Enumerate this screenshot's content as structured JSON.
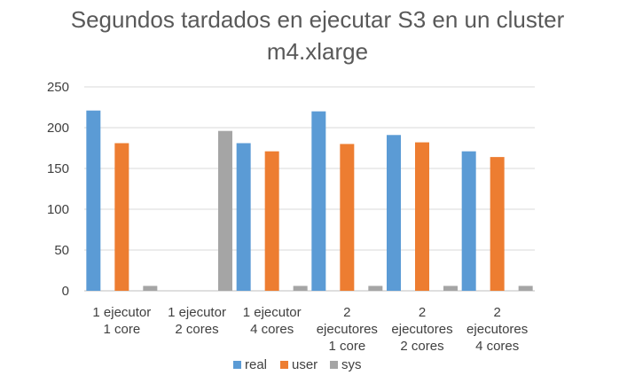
{
  "chart_data": {
    "type": "bar",
    "title_lines": [
      "Segundos tardados en ejecutar S3 en un cluster",
      "m4.xlarge"
    ],
    "categories": [
      [
        "1 ejecutor",
        "1 core"
      ],
      [
        "1 ejecutor",
        "2 cores"
      ],
      [
        "1 ejecutor",
        "4 cores"
      ],
      [
        "2",
        "ejecutores",
        "1 core"
      ],
      [
        "2",
        "ejecutores",
        "2 cores"
      ],
      [
        "2",
        "ejecutores",
        "4 cores"
      ]
    ],
    "series": [
      {
        "name": "real",
        "color": "#5b9bd5",
        "values": [
          221,
          null,
          181,
          220,
          191,
          171
        ]
      },
      {
        "name": "user",
        "color": "#ed7d31",
        "values": [
          181,
          null,
          171,
          180,
          182,
          164
        ]
      },
      {
        "name": "sys",
        "color": "#a5a5a5",
        "values": [
          6,
          196,
          6,
          6,
          6,
          6
        ]
      }
    ],
    "ylim": [
      0,
      250
    ],
    "yticks": [
      "0",
      "50",
      "100",
      "150",
      "200",
      "250"
    ],
    "grid": true,
    "legend_position": "bottom"
  }
}
